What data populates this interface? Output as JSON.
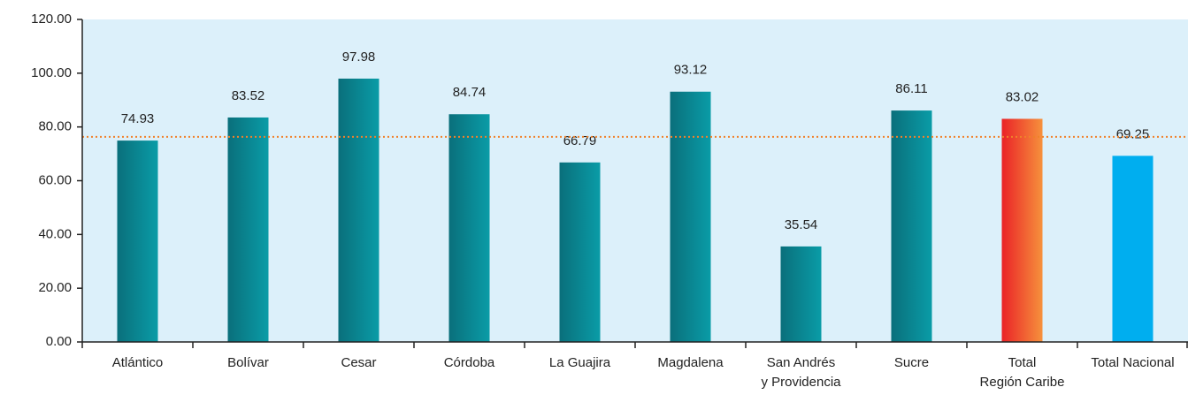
{
  "chart_data": {
    "type": "bar",
    "categories": [
      "Atlántico",
      "Bolívar",
      "Cesar",
      "Córdoba",
      "La Guajira",
      "Magdalena",
      "San Andrés\ny Providencia",
      "Sucre",
      "Total\nRegión Caribe",
      "Total Nacional"
    ],
    "values": [
      74.93,
      83.52,
      97.98,
      84.74,
      66.79,
      93.12,
      35.54,
      86.11,
      83.02,
      69.25
    ],
    "colors": [
      [
        "#0a6f7b",
        "#0a9ca7"
      ],
      [
        "#0a6f7b",
        "#0a9ca7"
      ],
      [
        "#0a6f7b",
        "#0a9ca7"
      ],
      [
        "#0a6f7b",
        "#0a9ca7"
      ],
      [
        "#0a6f7b",
        "#0a9ca7"
      ],
      [
        "#0a6f7b",
        "#0a9ca7"
      ],
      [
        "#0a6f7b",
        "#0a9ca7"
      ],
      [
        "#0a6f7b",
        "#0a9ca7"
      ],
      [
        "#ea2227",
        "#f6913c"
      ],
      [
        "#00aeef",
        "#00aeef"
      ]
    ],
    "plot_background": "#dcf0fa",
    "reference_line": {
      "value": 76.3,
      "color": "#f0812a"
    },
    "ylim": [
      0,
      120
    ],
    "yticks": [
      {
        "value": 0,
        "label": "0.00"
      },
      {
        "value": 20,
        "label": "20.00"
      },
      {
        "value": 40,
        "label": "40.00"
      },
      {
        "value": 60,
        "label": "60.00"
      },
      {
        "value": 80,
        "label": "80.00"
      },
      {
        "value": 100,
        "label": "100.00"
      },
      {
        "value": 120,
        "label": "120.00"
      }
    ]
  }
}
